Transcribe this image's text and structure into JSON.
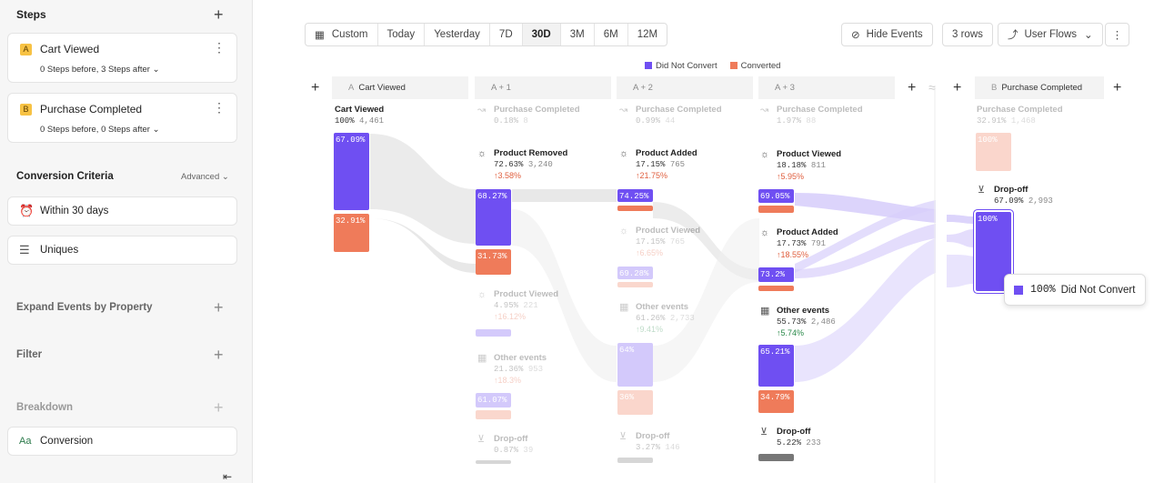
{
  "sidebar": {
    "steps_title": "Steps",
    "steps": [
      {
        "letter": "A",
        "name": "Cart Viewed",
        "sub": "0 Steps before, 3 Steps after"
      },
      {
        "letter": "B",
        "name": "Purchase Completed",
        "sub": "0 Steps before, 0 Steps after"
      }
    ],
    "conversion_title": "Conversion Criteria",
    "advanced": "Advanced",
    "within": "Within 30 days",
    "uniques": "Uniques",
    "expand": "Expand Events by Property",
    "filter": "Filter",
    "breakdown": "Breakdown",
    "conversion": "Conversion",
    "conversion_icon_text": "Aa"
  },
  "toolbar": {
    "ranges": [
      "Custom",
      "Today",
      "Yesterday",
      "7D",
      "30D",
      "3M",
      "6M",
      "12M"
    ],
    "active_range": "30D",
    "hide_events": "Hide Events",
    "rows": "3 rows",
    "user_flows": "User Flows"
  },
  "legend": {
    "not_convert": "Did Not Convert",
    "converted": "Converted"
  },
  "colors": {
    "purple": "#6f4ff2",
    "orange": "#ef7b5a",
    "gray": "#777777"
  },
  "columns": {
    "a": {
      "letter": "A",
      "name": "Cart Viewed"
    },
    "a1": "A + 1",
    "a2": "A + 2",
    "a3": "A + 3",
    "b": {
      "letter": "B",
      "name": "Purchase Completed"
    }
  },
  "colA": {
    "name": "Cart Viewed",
    "pct": "100%",
    "count": "4,461",
    "purple": "67.09%",
    "orange": "32.91%"
  },
  "col1": {
    "pc": {
      "name": "Purchase Completed",
      "pct": "0.18%",
      "count": "8"
    },
    "removed": {
      "name": "Product Removed",
      "pct": "72.63%",
      "count": "3,240",
      "delta": "↑3.58%",
      "purple": "68.27%",
      "orange": "31.73%"
    },
    "viewed": {
      "name": "Product Viewed",
      "pct": "4.95%",
      "count": "221",
      "delta": "↑16.12%"
    },
    "other": {
      "name": "Other events",
      "pct": "21.36%",
      "count": "953",
      "delta": "↑18.3%",
      "purple": "61.07%"
    },
    "drop": {
      "name": "Drop-off",
      "pct": "0.87%",
      "count": "39"
    }
  },
  "col2": {
    "pc": {
      "name": "Purchase Completed",
      "pct": "0.99%",
      "count": "44"
    },
    "added": {
      "name": "Product Added",
      "pct": "17.15%",
      "count": "765",
      "delta": "↑21.75%",
      "purple": "74.25%"
    },
    "viewed": {
      "name": "Product Viewed",
      "pct": "17.15%",
      "count": "765",
      "delta": "↑6.65%",
      "purple": "69.28%"
    },
    "other": {
      "name": "Other events",
      "pct": "61.26%",
      "count": "2,733",
      "delta": "↑9.41%",
      "purple": "64%",
      "orange": "36%"
    },
    "drop": {
      "name": "Drop-off",
      "pct": "3.27%",
      "count": "146"
    }
  },
  "col3": {
    "pc": {
      "name": "Purchase Completed",
      "pct": "1.97%",
      "count": "88"
    },
    "viewed": {
      "name": "Product Viewed",
      "pct": "18.18%",
      "count": "811",
      "delta": "↑5.95%",
      "purple": "69.05%"
    },
    "added": {
      "name": "Product Added",
      "pct": "17.73%",
      "count": "791",
      "delta": "↑18.55%",
      "purple": "73.2%"
    },
    "other": {
      "name": "Other events",
      "pct": "55.73%",
      "count": "2,486",
      "delta": "↑5.74%",
      "purple": "65.21%",
      "orange": "34.79%"
    },
    "drop": {
      "name": "Drop-off",
      "pct": "5.22%",
      "count": "233"
    }
  },
  "colB": {
    "pc": {
      "name": "Purchase Completed",
      "pct": "32.91%",
      "count": "1,468",
      "bar": "100%"
    },
    "drop": {
      "name": "Drop-off",
      "pct": "67.09%",
      "count": "2,993",
      "bar": "100%"
    }
  },
  "tooltip": {
    "pct": "100%",
    "label": "Did Not Convert"
  }
}
